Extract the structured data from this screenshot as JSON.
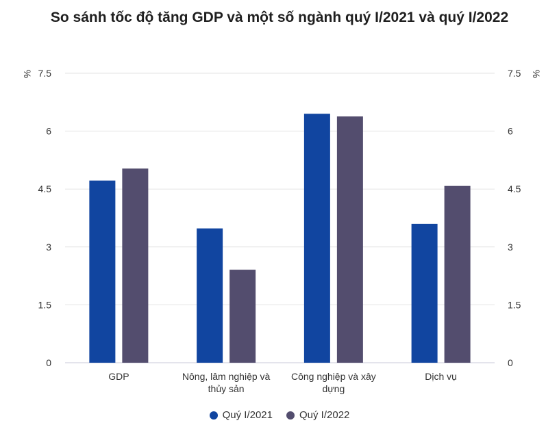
{
  "chart_data": {
    "type": "bar",
    "title": "So sánh tốc độ tăng GDP và một số ngành quý I/2021 và quý I/2022",
    "y_unit_left": "%",
    "y_unit_right": "%",
    "ylim": [
      0,
      7.5
    ],
    "yticks": [
      "0",
      "1.5",
      "3",
      "4.5",
      "6",
      "7.5"
    ],
    "ytick_values": [
      0,
      1.5,
      3,
      4.5,
      6,
      7.5
    ],
    "grid": true,
    "legend_position": "bottom-center",
    "categories": [
      [
        "GDP"
      ],
      [
        "Nông, lâm nghiệp và",
        "thủy sản"
      ],
      [
        "Công nghiệp và xây",
        "dựng"
      ],
      [
        "Dịch vụ"
      ]
    ],
    "series": [
      {
        "name": "Quý I/2021",
        "color": "#1145a0",
        "values": [
          4.72,
          3.48,
          6.45,
          3.6
        ]
      },
      {
        "name": "Quý I/2022",
        "color": "#534d6e",
        "values": [
          5.03,
          2.41,
          6.38,
          4.58
        ]
      }
    ]
  }
}
